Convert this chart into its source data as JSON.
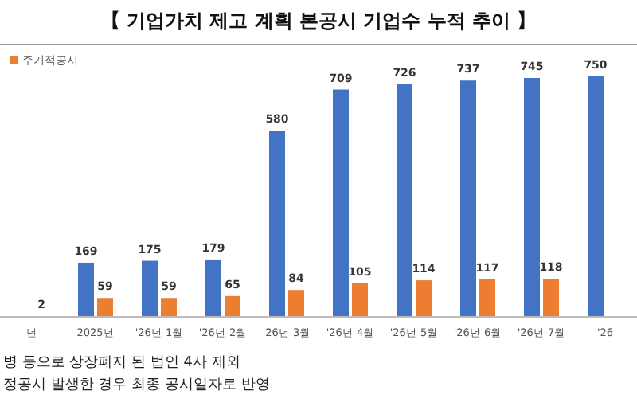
{
  "chart_data": {
    "type": "bar",
    "title": "【 기업가치 제고 계획 본공시 기업수 누적 추이 】",
    "categories": [
      "년",
      "2025년",
      "'26년 1월",
      "'26년 2월",
      "'26년 3월",
      "'26년 4월",
      "'26년 5월",
      "'26년 6월",
      "'26년 7월",
      "'26"
    ],
    "series": [
      {
        "color": "#4472c4",
        "values": [
          null,
          169,
          175,
          179,
          580,
          709,
          726,
          737,
          745,
          750
        ]
      },
      {
        "name": "주기적공시",
        "color": "#ed7d31",
        "values": [
          2,
          59,
          59,
          65,
          84,
          105,
          114,
          117,
          118,
          null
        ]
      }
    ],
    "data_labels": true,
    "legend": "top left",
    "annotations": [
      "병 등으로 상장폐지 된 법인 4사 제외",
      "정공시 발생한 경우 최종 공시일자로 반영"
    ]
  }
}
